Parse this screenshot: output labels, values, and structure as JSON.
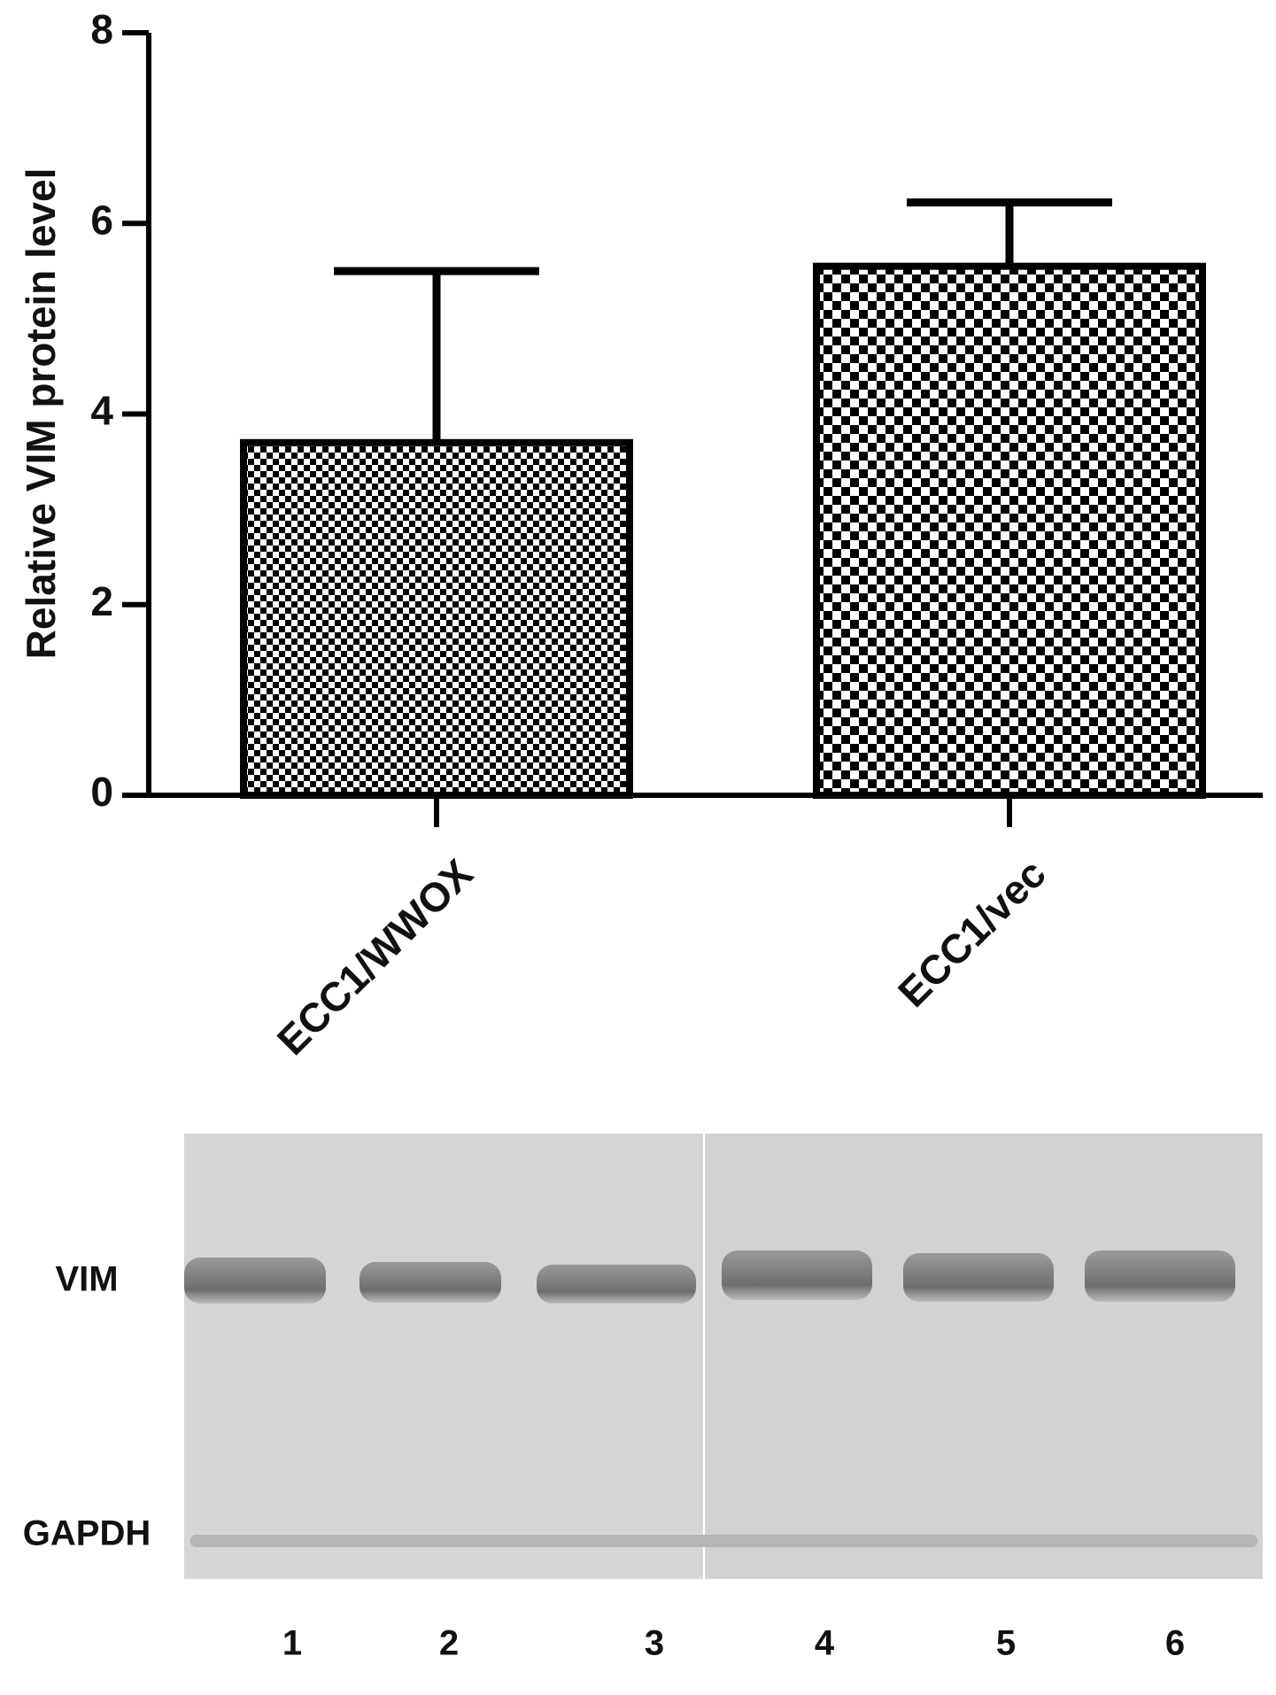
{
  "chart_data": {
    "type": "bar",
    "ylabel": "Relative VIM protein level",
    "categories": [
      "ECC1/WWOX",
      "ECC1/vec"
    ],
    "values": [
      3.7,
      5.55
    ],
    "errors": [
      1.8,
      0.67
    ],
    "ylim": [
      0,
      8
    ],
    "yticks": [
      0,
      2,
      4,
      6,
      8
    ],
    "grid": false,
    "color": "#000000"
  },
  "blot": {
    "bands": [
      "VIM",
      "GAPDH"
    ],
    "lanes": [
      "1",
      "2",
      "3",
      "4",
      "5",
      "6"
    ]
  }
}
